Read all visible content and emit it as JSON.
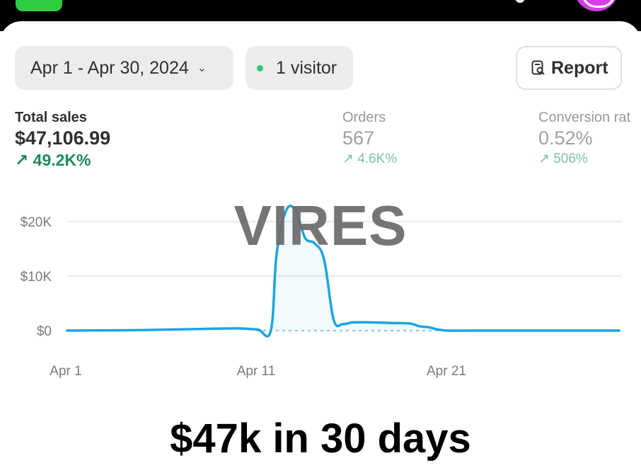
{
  "header": {
    "date_range": "Apr 1 - Apr 30, 2024",
    "visitors": "1 visitor",
    "report_label": "Report"
  },
  "metrics": {
    "sales": {
      "label": "Total sales",
      "value": "$47,106.99",
      "change": "49.2K%"
    },
    "orders": {
      "label": "Orders",
      "value": "567",
      "change": "4.6K%"
    },
    "conversion": {
      "label": "Conversion rat",
      "value": "0.52%",
      "change": "506%"
    }
  },
  "watermark": "VIRES",
  "caption": "$47k in 30 days",
  "colors": {
    "line": "#1ea4e0",
    "growth": "#1e8a57",
    "growth_muted": "#7cc49c",
    "live_dot": "#2ecc71"
  },
  "chart_data": {
    "type": "line",
    "title": "",
    "xlabel": "",
    "ylabel": "",
    "yticks": [
      "$0",
      "$10K",
      "$20K"
    ],
    "ytick_values": [
      0,
      10000,
      20000
    ],
    "xticks": [
      "Apr 1",
      "Apr 11",
      "Apr 21"
    ],
    "xtick_days": [
      1,
      11,
      21
    ],
    "xlim": [
      1,
      30
    ],
    "ylim": [
      0,
      20000
    ],
    "grid": true,
    "series": [
      {
        "x": [
          1,
          5,
          8,
          10,
          11,
          11.7,
          12,
          12.5,
          13,
          13.5,
          14,
          14.5,
          15,
          15.5,
          16,
          17,
          18,
          19,
          19.5,
          20,
          20.5,
          21,
          22,
          25,
          30
        ],
        "values": [
          0,
          100,
          300,
          400,
          200,
          0,
          14000,
          22000,
          22000,
          17000,
          16000,
          13000,
          2000,
          1200,
          1500,
          1500,
          1400,
          1300,
          800,
          600,
          200,
          0,
          0,
          0,
          0
        ]
      },
      {
        "name": "",
        "style": "dotted",
        "x": [
          11,
          21
        ],
        "values": [
          0,
          0
        ]
      }
    ]
  }
}
